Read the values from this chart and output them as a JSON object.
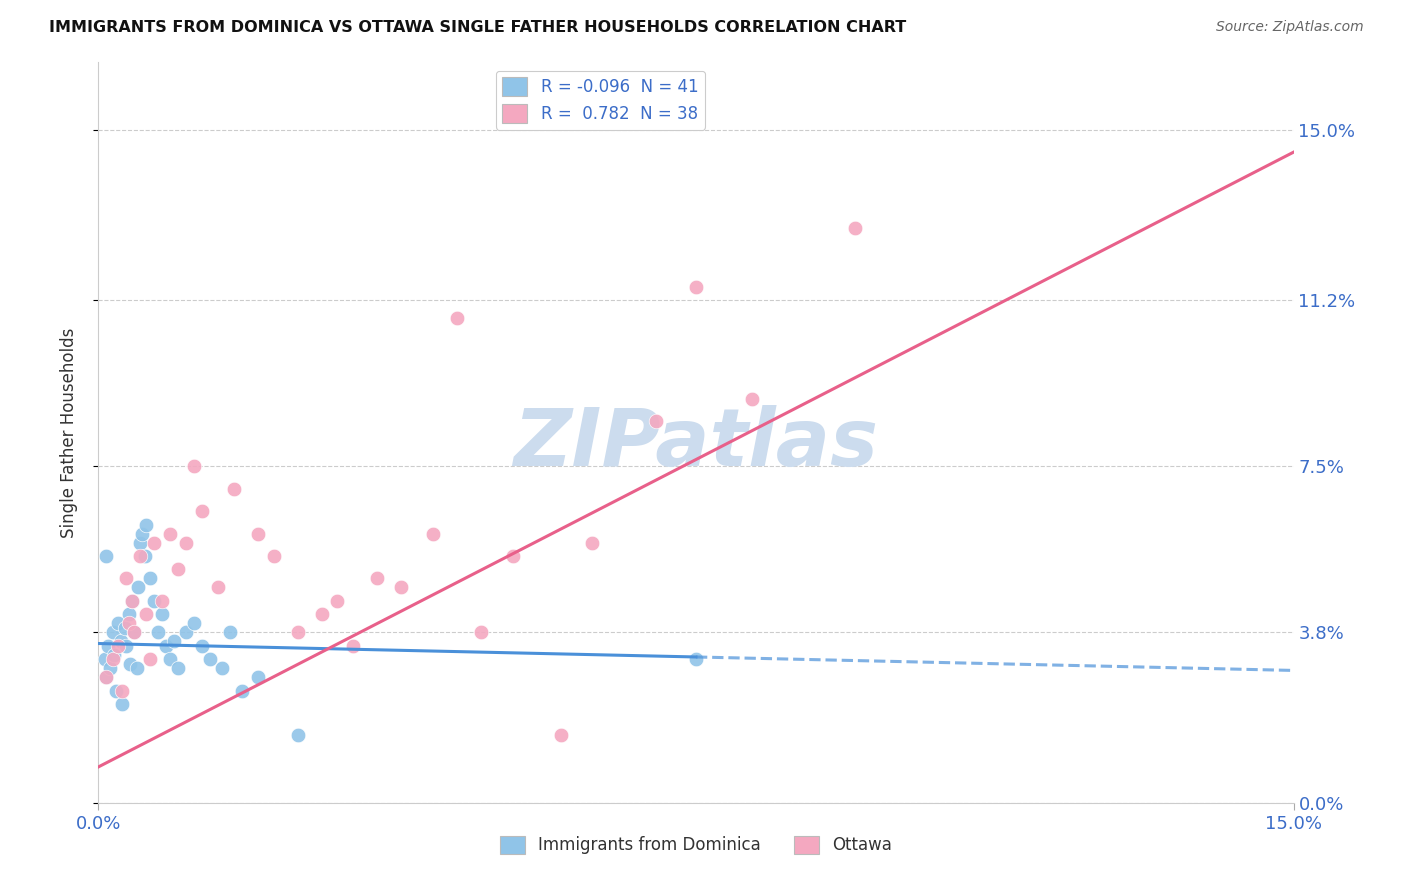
{
  "title": "IMMIGRANTS FROM DOMINICA VS OTTAWA SINGLE FATHER HOUSEHOLDS CORRELATION CHART",
  "source": "Source: ZipAtlas.com",
  "ylabel": "Single Father Households",
  "ytick_values": [
    0.0,
    3.8,
    7.5,
    11.2,
    15.0
  ],
  "xlim": [
    0.0,
    15.0
  ],
  "ylim": [
    0.0,
    16.5
  ],
  "legend1_label": "Immigrants from Dominica",
  "legend2_label": "Ottawa",
  "R1": "-0.096",
  "N1": "41",
  "R2": "0.782",
  "N2": "38",
  "blue_color": "#90c4e8",
  "pink_color": "#f4a8c0",
  "blue_line_color": "#4a90d9",
  "pink_line_color": "#e8608a",
  "watermark": "ZIPatlas",
  "watermark_color": "#ccdcee",
  "blue_scatter_x": [
    0.08,
    0.1,
    0.12,
    0.15,
    0.18,
    0.2,
    0.22,
    0.25,
    0.28,
    0.3,
    0.33,
    0.35,
    0.38,
    0.4,
    0.42,
    0.45,
    0.48,
    0.5,
    0.52,
    0.55,
    0.58,
    0.6,
    0.65,
    0.7,
    0.75,
    0.8,
    0.85,
    0.9,
    0.95,
    1.0,
    1.1,
    1.2,
    1.3,
    1.4,
    1.55,
    1.65,
    1.8,
    2.0,
    2.5,
    0.1,
    7.5
  ],
  "blue_scatter_y": [
    3.2,
    2.8,
    3.5,
    3.0,
    3.8,
    3.3,
    2.5,
    4.0,
    3.6,
    2.2,
    3.9,
    3.5,
    4.2,
    3.1,
    4.5,
    3.8,
    3.0,
    4.8,
    5.8,
    6.0,
    5.5,
    6.2,
    5.0,
    4.5,
    3.8,
    4.2,
    3.5,
    3.2,
    3.6,
    3.0,
    3.8,
    4.0,
    3.5,
    3.2,
    3.0,
    3.8,
    2.5,
    2.8,
    1.5,
    5.5,
    3.2
  ],
  "pink_scatter_x": [
    0.1,
    0.18,
    0.25,
    0.3,
    0.38,
    0.45,
    0.52,
    0.6,
    0.7,
    0.8,
    0.9,
    1.0,
    1.1,
    1.3,
    1.5,
    1.7,
    2.0,
    2.2,
    2.5,
    2.8,
    3.0,
    3.2,
    3.5,
    3.8,
    4.2,
    4.8,
    5.2,
    5.8,
    6.2,
    7.0,
    7.5,
    8.2,
    9.5,
    0.35,
    0.42,
    0.65,
    1.2,
    4.5
  ],
  "pink_scatter_y": [
    2.8,
    3.2,
    3.5,
    2.5,
    4.0,
    3.8,
    5.5,
    4.2,
    5.8,
    4.5,
    6.0,
    5.2,
    5.8,
    6.5,
    4.8,
    7.0,
    6.0,
    5.5,
    3.8,
    4.2,
    4.5,
    3.5,
    5.0,
    4.8,
    6.0,
    3.8,
    5.5,
    1.5,
    5.8,
    8.5,
    11.5,
    9.0,
    12.8,
    5.0,
    4.5,
    3.2,
    7.5,
    10.8
  ],
  "blue_line_x0": 0.0,
  "blue_line_y0": 3.55,
  "blue_line_x1": 7.5,
  "blue_line_y1": 3.25,
  "blue_dash_x0": 7.5,
  "blue_dash_y0": 3.25,
  "blue_dash_x1": 15.0,
  "blue_dash_y1": 2.95,
  "pink_line_x0": 0.0,
  "pink_line_y0": 0.8,
  "pink_line_x1": 15.0,
  "pink_line_y1": 14.5
}
